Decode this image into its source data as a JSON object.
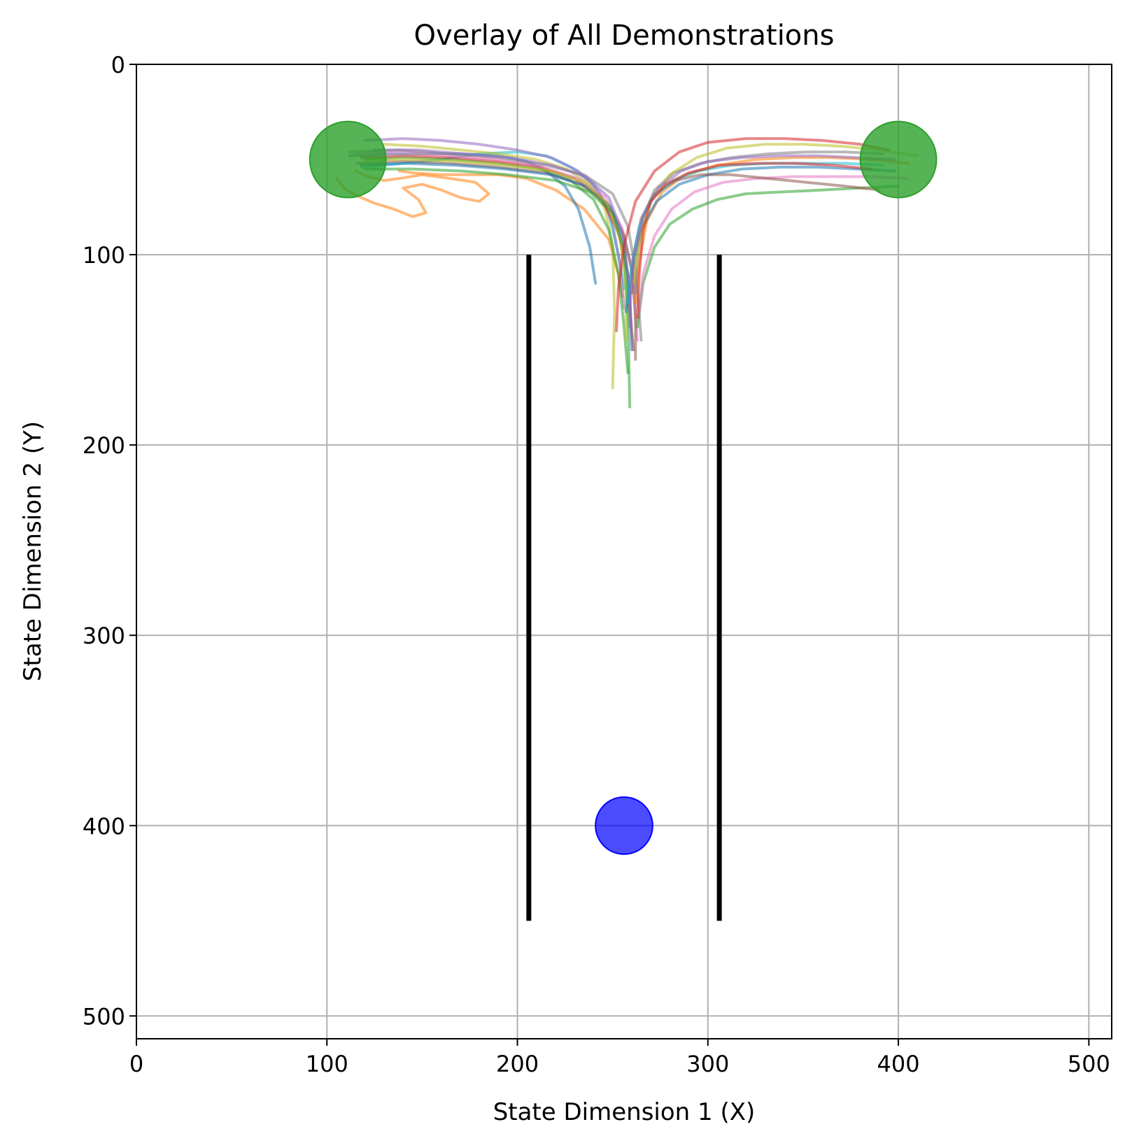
{
  "chart_data": {
    "type": "line",
    "title": "Overlay of All Demonstrations",
    "xlabel": "State Dimension 1 (X)",
    "ylabel": "State Dimension 2 (Y)",
    "xlim": [
      0,
      512
    ],
    "ylim": [
      512,
      0
    ],
    "y_inverted": true,
    "x_ticks": [
      0,
      100,
      200,
      300,
      400,
      500
    ],
    "y_ticks": [
      0,
      100,
      200,
      300,
      400,
      500
    ],
    "grid": true,
    "walls": [
      {
        "x": 206,
        "y": [
          100,
          450
        ],
        "color": "#000000"
      },
      {
        "x": 306,
        "y": [
          100,
          450
        ],
        "color": "#000000"
      }
    ],
    "markers": [
      {
        "x": 111,
        "y": 50,
        "radius": 20,
        "color": "#2ca02c",
        "alpha": 0.8
      },
      {
        "x": 400,
        "y": 50,
        "radius": 20,
        "color": "#2ca02c",
        "alpha": 0.8
      },
      {
        "x": 256,
        "y": 400,
        "radius": 15,
        "color": "#0000ff",
        "alpha": 0.7
      }
    ],
    "palette": [
      "#1f77b4",
      "#ff7f0e",
      "#2ca02c",
      "#d62728",
      "#9467bd",
      "#8c564b",
      "#e377c2",
      "#7f7f7f",
      "#bcbd22",
      "#17becf"
    ],
    "series": [
      {
        "color": "#ff7f0e",
        "x": [
          115,
          122,
          130,
          138,
          150,
          165,
          178,
          185,
          180,
          170,
          160,
          150,
          140,
          148,
          152,
          145,
          135,
          125,
          118,
          110,
          105
        ],
        "y": [
          56,
          59,
          61,
          60,
          58,
          60,
          62,
          68,
          72,
          70,
          66,
          63,
          65,
          71,
          78,
          80,
          76,
          73,
          70,
          66,
          60
        ]
      },
      {
        "color": "#ff7f0e",
        "x": [
          138,
          145,
          160,
          175,
          190,
          205,
          220,
          235,
          248,
          253,
          255
        ],
        "y": [
          56,
          57,
          58,
          58,
          58,
          60,
          66,
          76,
          92,
          110,
          122
        ]
      },
      {
        "color": "#1f77b4",
        "x": [
          112,
          130,
          150,
          170,
          190,
          205,
          215,
          225,
          232,
          238,
          241
        ],
        "y": [
          48,
          47,
          47,
          47,
          48,
          51,
          56,
          64,
          76,
          96,
          115
        ]
      },
      {
        "color": "#17becf",
        "x": [
          118,
          140,
          160,
          180,
          200,
          215,
          228,
          240,
          248,
          253,
          256
        ],
        "y": [
          54,
          52,
          50,
          47,
          46,
          48,
          54,
          63,
          78,
          100,
          118
        ]
      },
      {
        "color": "#9467bd",
        "x": [
          120,
          140,
          160,
          180,
          200,
          218,
          232,
          243,
          250,
          254,
          256
        ],
        "y": [
          40,
          39,
          40,
          42,
          45,
          49,
          56,
          67,
          84,
          106,
          128
        ]
      },
      {
        "color": "#bcbd22",
        "x": [
          130,
          150,
          170,
          190,
          210,
          226,
          238,
          246,
          250,
          251,
          250
        ],
        "y": [
          42,
          43,
          45,
          47,
          50,
          55,
          63,
          76,
          95,
          130,
          170
        ]
      },
      {
        "color": "#2ca02c",
        "x": [
          120,
          140,
          165,
          190,
          212,
          228,
          240,
          248,
          253,
          256,
          258
        ],
        "y": [
          50,
          49,
          50,
          52,
          55,
          61,
          71,
          87,
          110,
          138,
          162
        ]
      },
      {
        "color": "#d62728",
        "x": [
          118,
          140,
          165,
          190,
          212,
          230,
          244,
          253,
          258,
          260,
          261
        ],
        "y": [
          49,
          48,
          49,
          51,
          54,
          60,
          70,
          88,
          110,
          140,
          150
        ]
      },
      {
        "color": "#e377c2",
        "x": [
          115,
          140,
          165,
          190,
          213,
          232,
          246,
          255,
          260,
          262,
          263
        ],
        "y": [
          47,
          46,
          48,
          50,
          54,
          60,
          70,
          86,
          108,
          132,
          145
        ]
      },
      {
        "color": "#8c564b",
        "x": [
          116,
          140,
          165,
          190,
          215,
          233,
          247,
          256,
          261,
          262,
          262
        ],
        "y": [
          52,
          51,
          52,
          54,
          57,
          63,
          73,
          90,
          112,
          135,
          155
        ]
      },
      {
        "color": "#7f7f7f",
        "x": [
          112,
          138,
          164,
          190,
          215,
          235,
          250,
          258,
          262,
          264,
          265
        ],
        "y": [
          46,
          45,
          47,
          49,
          53,
          58,
          68,
          85,
          108,
          132,
          145
        ]
      },
      {
        "color": "#1f77b4",
        "x": [
          118,
          142,
          168,
          194,
          218,
          236,
          249,
          256,
          259,
          260
        ],
        "y": [
          53,
          52,
          53,
          55,
          58,
          64,
          75,
          94,
          120,
          150
        ]
      },
      {
        "color": "#bcbd22",
        "x": [
          122,
          145,
          170,
          195,
          218,
          235,
          247,
          254,
          257,
          257
        ],
        "y": [
          50,
          50,
          51,
          53,
          56,
          62,
          73,
          92,
          118,
          145
        ]
      },
      {
        "color": "#9467bd",
        "x": [
          125,
          148,
          172,
          196,
          218,
          236,
          248,
          255,
          258,
          259
        ],
        "y": [
          45,
          45,
          47,
          49,
          53,
          59,
          70,
          88,
          112,
          138
        ]
      },
      {
        "color": "#2ca02c",
        "x": [
          120,
          145,
          170,
          195,
          220,
          238,
          250,
          256,
          258,
          259
        ],
        "y": [
          55,
          55,
          56,
          58,
          61,
          67,
          78,
          98,
          130,
          180
        ]
      },
      {
        "color": "#d62728",
        "x": [
          395,
          380,
          360,
          340,
          320,
          300,
          285,
          272,
          262,
          256,
          253,
          252
        ],
        "y": [
          45,
          42,
          40,
          39,
          39,
          41,
          46,
          56,
          72,
          95,
          118,
          140
        ]
      },
      {
        "color": "#ff7f0e",
        "x": [
          405,
          385,
          365,
          345,
          325,
          305,
          288,
          276,
          268,
          264,
          262
        ],
        "y": [
          52,
          50,
          49,
          49,
          50,
          53,
          58,
          67,
          82,
          103,
          125
        ]
      },
      {
        "color": "#1f77b4",
        "x": [
          398,
          378,
          358,
          338,
          318,
          300,
          285,
          273,
          265,
          260,
          257
        ],
        "y": [
          56,
          55,
          54,
          54,
          55,
          58,
          63,
          72,
          87,
          108,
          130
        ]
      },
      {
        "color": "#2ca02c",
        "x": [
          400,
          380,
          360,
          340,
          320,
          305,
          292,
          280,
          272,
          266,
          263
        ],
        "y": [
          64,
          65,
          66,
          67,
          68,
          71,
          76,
          84,
          96,
          115,
          138
        ]
      },
      {
        "color": "#e377c2",
        "x": [
          405,
          385,
          365,
          345,
          325,
          308,
          293,
          281,
          272,
          266,
          264
        ],
        "y": [
          60,
          59,
          59,
          59,
          60,
          62,
          67,
          76,
          90,
          110,
          130
        ]
      },
      {
        "color": "#8c564b",
        "x": [
          390,
          372,
          352,
          332,
          312,
          296,
          283,
          272,
          265,
          261,
          260
        ],
        "y": [
          66,
          64,
          62,
          60,
          58,
          58,
          61,
          68,
          81,
          100,
          120
        ]
      },
      {
        "color": "#7f7f7f",
        "x": [
          392,
          372,
          352,
          332,
          312,
          296,
          282,
          272,
          266,
          263,
          262
        ],
        "y": [
          47,
          46,
          46,
          47,
          49,
          52,
          57,
          66,
          80,
          100,
          120
        ]
      },
      {
        "color": "#17becf",
        "x": [
          392,
          372,
          352,
          332,
          312,
          295,
          282,
          271,
          264,
          260,
          258
        ],
        "y": [
          53,
          52,
          52,
          52,
          53,
          56,
          61,
          70,
          85,
          105,
          125
        ]
      },
      {
        "color": "#bcbd22",
        "x": [
          410,
          390,
          370,
          350,
          330,
          310,
          294,
          280,
          270,
          264,
          261
        ],
        "y": [
          48,
          45,
          43,
          42,
          42,
          44,
          49,
          58,
          72,
          93,
          115
        ]
      },
      {
        "color": "#9467bd",
        "x": [
          398,
          378,
          358,
          338,
          318,
          300,
          286,
          274,
          266,
          261,
          259
        ],
        "y": [
          50,
          49,
          48,
          48,
          49,
          51,
          56,
          65,
          80,
          102,
          128
        ]
      },
      {
        "color": "#d62728",
        "x": [
          386,
          366,
          346,
          326,
          306,
          290,
          278,
          270,
          266,
          264,
          263
        ],
        "y": [
          55,
          53,
          52,
          52,
          53,
          57,
          63,
          72,
          87,
          110,
          133
        ]
      }
    ]
  }
}
